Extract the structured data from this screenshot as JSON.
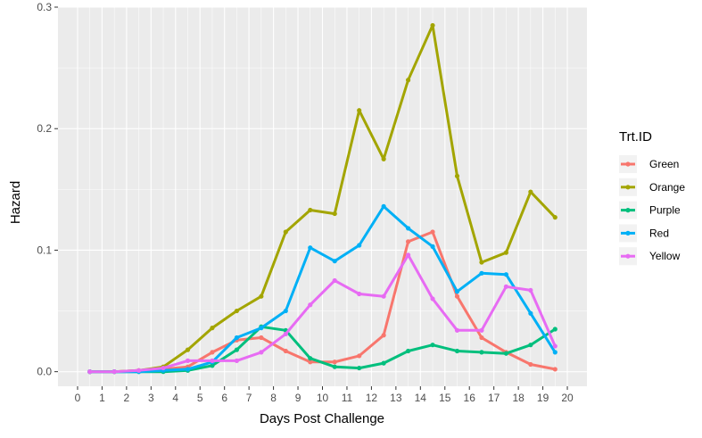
{
  "chart_data": {
    "type": "line",
    "xlabel": "Days Post Challenge",
    "ylabel": "Hazard",
    "xlim": [
      -0.8,
      20.8
    ],
    "ylim": [
      -0.012,
      0.3
    ],
    "x_ticks": [
      0,
      1,
      2,
      3,
      4,
      5,
      6,
      7,
      8,
      9,
      10,
      11,
      12,
      13,
      14,
      15,
      16,
      17,
      18,
      19,
      20
    ],
    "x_tick_labels": [
      "0",
      "1",
      "2",
      "3",
      "4",
      "5",
      "6",
      "7",
      "8",
      "9",
      "10",
      "11",
      "12",
      "13",
      "14",
      "15",
      "16",
      "17",
      "18",
      "19",
      "20"
    ],
    "y_ticks": [
      0,
      0.1,
      0.2,
      0.3
    ],
    "y_tick_labels": [
      "0.0",
      "0.1",
      "0.2",
      "0.3"
    ],
    "grid": true,
    "legend": {
      "title": "Trt.ID",
      "position": "right"
    },
    "x": [
      0.5,
      1.5,
      2.5,
      3.5,
      4.5,
      5.5,
      6.5,
      7.5,
      8.5,
      9.5,
      10.5,
      11.5,
      12.5,
      13.5,
      14.5,
      15.5,
      16.5,
      17.5,
      18.5,
      19.5
    ],
    "series": [
      {
        "name": "Green",
        "color": "#F8766D",
        "values": [
          0,
          0,
          0.001,
          0.002,
          0.004,
          0.016,
          0.026,
          0.028,
          0.017,
          0.008,
          0.008,
          0.013,
          0.03,
          0.107,
          0.115,
          0.062,
          0.028,
          0.016,
          0.006,
          0.002
        ]
      },
      {
        "name": "Orange",
        "color": "#A3A500",
        "values": [
          0,
          0,
          0.001,
          0.004,
          0.018,
          0.036,
          0.05,
          0.062,
          0.115,
          0.133,
          0.13,
          0.215,
          0.175,
          0.24,
          0.285,
          0.161,
          0.09,
          0.098,
          0.148,
          0.127
        ]
      },
      {
        "name": "Purple",
        "color": "#00BF7D",
        "values": [
          0,
          0,
          0,
          0,
          0.001,
          0.005,
          0.018,
          0.037,
          0.034,
          0.011,
          0.004,
          0.003,
          0.007,
          0.017,
          0.022,
          0.017,
          0.016,
          0.015,
          0.022,
          0.035
        ]
      },
      {
        "name": "Red",
        "color": "#00B0F6",
        "values": [
          0,
          0,
          0,
          0.001,
          0.002,
          0.008,
          0.028,
          0.036,
          0.05,
          0.102,
          0.091,
          0.104,
          0.136,
          0.118,
          0.103,
          0.066,
          0.081,
          0.08,
          0.048,
          0.016
        ]
      },
      {
        "name": "Yellow",
        "color": "#E76BF3",
        "values": [
          0,
          0,
          0.001,
          0.003,
          0.009,
          0.009,
          0.009,
          0.016,
          0.031,
          0.055,
          0.075,
          0.064,
          0.062,
          0.096,
          0.06,
          0.034,
          0.034,
          0.07,
          0.067,
          0.021
        ]
      }
    ]
  },
  "colors": {
    "panel": "#EBEBEB",
    "grid": "#FFFFFF",
    "tick": "#333333"
  }
}
